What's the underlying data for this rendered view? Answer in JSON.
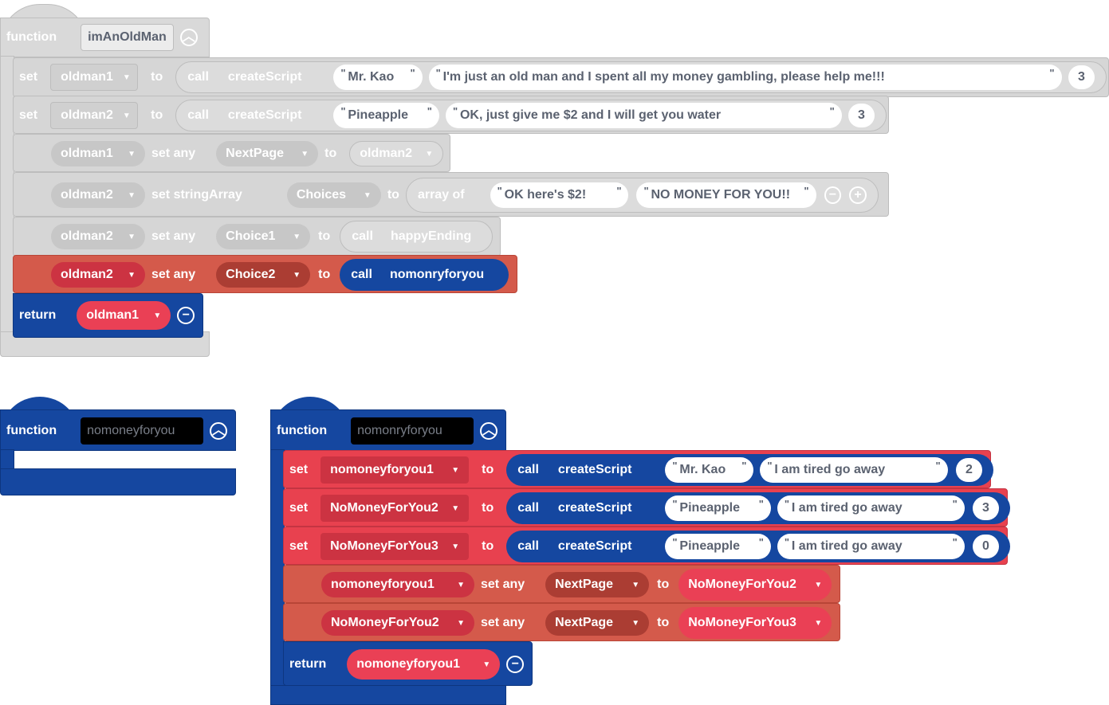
{
  "f1": {
    "kw": "function",
    "name": "imAnOldMan",
    "s1": {
      "set": "set",
      "var": "oldman1",
      "to": "to",
      "call": "call",
      "fn": "createScript",
      "a1": "Mr. Kao",
      "a2": "I'm just an old man and I spent all my money gambling, please help me!!!",
      "n": "3"
    },
    "s2": {
      "set": "set",
      "var": "oldman2",
      "to": "to",
      "call": "call",
      "fn": "createScript",
      "a1": "Pineapple",
      "a2": "OK, just give me $2 and I will get you water",
      "n": "3"
    },
    "s3": {
      "obj": "oldman1",
      "op": "set any",
      "prop": "NextPage",
      "to": "to",
      "val": "oldman2"
    },
    "s4": {
      "obj": "oldman2",
      "op": "set stringArray",
      "prop": "Choices",
      "to": "to",
      "arr": "array of",
      "a1": "OK here's $2!",
      "a2": "NO MONEY FOR YOU!!"
    },
    "s5": {
      "obj": "oldman2",
      "op": "set any",
      "prop": "Choice1",
      "to": "to",
      "call": "call",
      "fn": "happyEnding"
    },
    "s6": {
      "obj": "oldman2",
      "op": "set any",
      "prop": "Choice2",
      "to": "to",
      "call": "call",
      "fn": "nomonryforyou"
    },
    "ret": {
      "kw": "return",
      "val": "oldman1"
    }
  },
  "f2": {
    "kw": "function",
    "name": "nomoneyforyou"
  },
  "f3": {
    "kw": "function",
    "name": "nomonryforyou",
    "s1": {
      "set": "set",
      "var": "nomoneyforyou1",
      "to": "to",
      "call": "call",
      "fn": "createScript",
      "a1": "Mr. Kao",
      "a2": "I am tired go away",
      "n": "2"
    },
    "s2": {
      "set": "set",
      "var": "NoMoneyForYou2",
      "to": "to",
      "call": "call",
      "fn": "createScript",
      "a1": "Pineapple",
      "a2": "I am tired go away",
      "n": "3"
    },
    "s3": {
      "set": "set",
      "var": "NoMoneyForYou3",
      "to": "to",
      "call": "call",
      "fn": "createScript",
      "a1": "Pineapple",
      "a2": "I am tired go away",
      "n": "0"
    },
    "s4": {
      "obj": "nomoneyforyou1",
      "op": "set any",
      "prop": "NextPage",
      "to": "to",
      "val": "NoMoneyForYou2"
    },
    "s5": {
      "obj": "NoMoneyForYou2",
      "op": "set any",
      "prop": "NextPage",
      "to": "to",
      "val": "NoMoneyForYou3"
    },
    "ret": {
      "kw": "return",
      "val": "nomoneyforyou1"
    }
  },
  "icons": {
    "caret": "▼",
    "collapse": "︿",
    "minus": "−",
    "plus": "+",
    "quote": "\""
  },
  "colors": {
    "disabled": "#d6d6d6",
    "variable_red": "#e8414f",
    "object_red": "#d45a4b",
    "procedure_blue": "#1547a0"
  }
}
